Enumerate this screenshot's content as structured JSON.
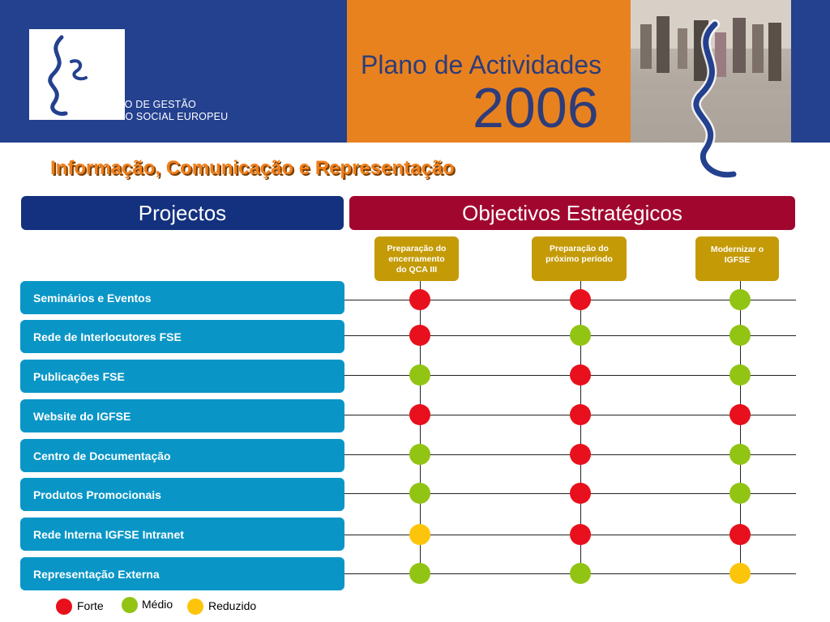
{
  "header": {
    "org_name_line1": "INSTITUTO DE GESTÃO",
    "org_name_line2": "DO FUNDO SOCIAL EUROPEU",
    "plan_title": "Plano de Actividades",
    "plan_year": "2006"
  },
  "section_title": "Informação, Comunicação e Representação",
  "column_headers": {
    "projects": "Projectos",
    "objectives": "Objectivos Estratégicos"
  },
  "objectives": [
    "Preparação do encerramento do QCA III",
    "Preparação do próximo período",
    "Modernizar o IGFSE"
  ],
  "projects": [
    "Seminários e Eventos",
    "Rede de Interlocutores FSE",
    "Publicações FSE",
    "Website do IGFSE",
    "Centro de Documentação",
    "Produtos Promocionais",
    "Rede Interna IGFSE Intranet",
    "Representação Externa"
  ],
  "matrix": [
    [
      "forte",
      "forte",
      "medio"
    ],
    [
      "forte",
      "medio",
      "medio"
    ],
    [
      "medio",
      "forte",
      "medio"
    ],
    [
      "forte",
      "forte",
      "forte"
    ],
    [
      "medio",
      "forte",
      "medio"
    ],
    [
      "medio",
      "forte",
      "medio"
    ],
    [
      "reduzido",
      "forte",
      "forte"
    ],
    [
      "medio",
      "medio",
      "reduzido"
    ]
  ],
  "legend": {
    "forte": "Forte",
    "medio": "Médio",
    "reduzido": "Reduzido"
  },
  "colors": {
    "forte": "#e8101c",
    "medio": "#92c414",
    "reduzido": "#fcc50b",
    "accent_orange": "#f07f1b",
    "banner_blue": "#24418f",
    "projects_header": "#14317f",
    "objectives_header": "#a1062f",
    "objective_box": "#c49a07",
    "project_box": "#0996c7"
  }
}
